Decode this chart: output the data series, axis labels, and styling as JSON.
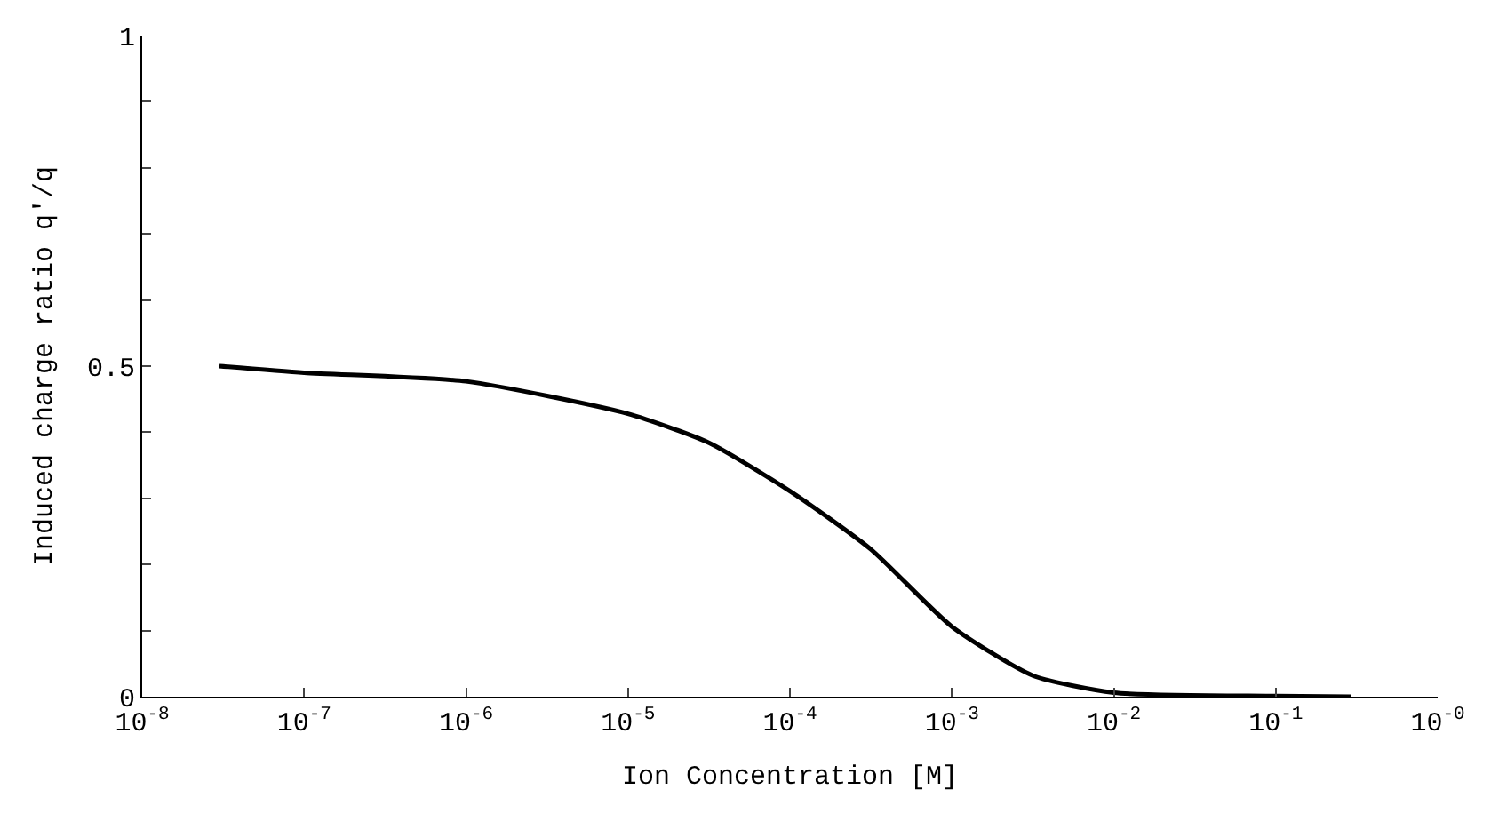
{
  "chart_data": {
    "type": "line",
    "xlabel": "Ion Concentration [M]",
    "ylabel": "Induced charge ratio q'/q",
    "log": "x",
    "x": [
      3e-08,
      1e-07,
      1e-06,
      1e-05,
      3.16e-05,
      0.0001,
      0.000316,
      0.001,
      0.00316,
      0.01,
      0.1,
      0.29
    ],
    "series": [
      {
        "color": "#000000",
        "values": [
          0.5,
          0.49,
          0.477,
          0.428,
          0.384,
          0.311,
          0.223,
          0.106,
          0.032,
          0.006,
          0.001,
          0.0
        ]
      }
    ],
    "xlim": [
      1e-08,
      1
    ],
    "xticks": [
      {
        "value": 1e-08,
        "label": "10$^{-8}$"
      },
      {
        "value": 1e-07,
        "label": "10$^{-7}$"
      },
      {
        "value": 1e-06,
        "label": "10$^{-6}$"
      },
      {
        "value": 1e-05,
        "label": "10$^{-5}$"
      },
      {
        "value": 0.0001,
        "label": "10$^{-4}$"
      },
      {
        "value": 0.001,
        "label": "10$^{-3}$"
      },
      {
        "value": 0.01,
        "label": "10$^{-2}$"
      },
      {
        "value": 0.1,
        "label": "10$^{-1}$"
      },
      {
        "value": 1,
        "label": "10$^{-0}$"
      }
    ],
    "ylim": [
      0,
      1
    ],
    "yticks": [
      0,
      {
        "value": 0.1,
        "label": null
      },
      {
        "value": 0.2,
        "label": null
      },
      {
        "value": 0.3,
        "label": null
      },
      {
        "value": 0.4,
        "label": null
      },
      0.5,
      {
        "value": 0.6,
        "label": null
      },
      {
        "value": 0.7,
        "label": null
      },
      {
        "value": 0.8,
        "label": null
      },
      {
        "value": 0.9,
        "label": null
      },
      1
    ],
    "marker": "none",
    "line_style": "solid"
  }
}
